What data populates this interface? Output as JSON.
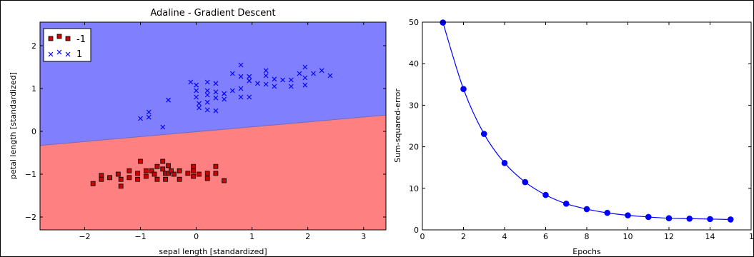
{
  "chart_data": [
    {
      "type": "scatter",
      "title": "Adaline - Gradient Descent",
      "xlabel": "sepal length [standardized]",
      "ylabel": "petal length [standardized]",
      "xlim": [
        -2.8,
        3.4
      ],
      "ylim": [
        -2.3,
        2.55
      ],
      "xticks": [
        -2,
        -1,
        0,
        1,
        2,
        3
      ],
      "yticks": [
        -2,
        -1,
        0,
        1,
        2
      ],
      "xtick_labels": [
        "−2",
        "−1",
        "0",
        "1",
        "2",
        "3"
      ],
      "ytick_labels": [
        "−2",
        "−1",
        "0",
        "1",
        "2"
      ],
      "legend_position": "top-left",
      "decision_boundary": {
        "x": [
          -2.8,
          3.4
        ],
        "y": [
          -0.33,
          0.38
        ]
      },
      "regions": {
        "upper_color": "#8080ff",
        "lower_color": "#ff8080"
      },
      "series": [
        {
          "name": "-1",
          "marker": "square",
          "color": "#cc0000",
          "points": [
            [
              -1.85,
              -1.22
            ],
            [
              -1.7,
              -1.03
            ],
            [
              -1.7,
              -1.12
            ],
            [
              -1.55,
              -1.08
            ],
            [
              -1.4,
              -1.0
            ],
            [
              -1.35,
              -1.12
            ],
            [
              -1.35,
              -1.28
            ],
            [
              -1.2,
              -0.92
            ],
            [
              -1.2,
              -1.08
            ],
            [
              -1.05,
              -0.98
            ],
            [
              -1.05,
              -1.12
            ],
            [
              -1.0,
              -0.7
            ],
            [
              -0.9,
              -0.92
            ],
            [
              -0.9,
              -1.05
            ],
            [
              -0.8,
              -0.92
            ],
            [
              -0.75,
              -1.0
            ],
            [
              -0.7,
              -0.82
            ],
            [
              -0.7,
              -1.12
            ],
            [
              -0.6,
              -0.7
            ],
            [
              -0.6,
              -0.88
            ],
            [
              -0.55,
              -0.98
            ],
            [
              -0.55,
              -1.12
            ],
            [
              -0.5,
              -0.8
            ],
            [
              -0.5,
              -0.98
            ],
            [
              -0.45,
              -0.92
            ],
            [
              -0.4,
              -1.0
            ],
            [
              -0.3,
              -0.92
            ],
            [
              -0.3,
              -1.12
            ],
            [
              -0.15,
              -0.98
            ],
            [
              -0.05,
              -0.82
            ],
            [
              -0.05,
              -0.92
            ],
            [
              -0.05,
              -1.05
            ],
            [
              0.05,
              -1.0
            ],
            [
              0.2,
              -0.98
            ],
            [
              0.2,
              -1.1
            ],
            [
              0.35,
              -0.82
            ],
            [
              0.35,
              -0.98
            ],
            [
              0.5,
              -1.15
            ]
          ]
        },
        {
          "name": "1",
          "marker": "x",
          "color": "#0000ff",
          "points": [
            [
              -1.0,
              0.3
            ],
            [
              -0.85,
              0.33
            ],
            [
              -0.85,
              0.45
            ],
            [
              -0.6,
              0.1
            ],
            [
              -0.5,
              0.73
            ],
            [
              -0.1,
              1.15
            ],
            [
              0.0,
              0.95
            ],
            [
              0.0,
              1.08
            ],
            [
              0.0,
              0.8
            ],
            [
              0.05,
              0.65
            ],
            [
              0.05,
              0.55
            ],
            [
              0.2,
              1.15
            ],
            [
              0.2,
              0.95
            ],
            [
              0.2,
              0.85
            ],
            [
              0.2,
              0.68
            ],
            [
              0.2,
              0.5
            ],
            [
              0.35,
              1.12
            ],
            [
              0.35,
              0.92
            ],
            [
              0.35,
              0.78
            ],
            [
              0.35,
              0.48
            ],
            [
              0.5,
              0.88
            ],
            [
              0.5,
              0.75
            ],
            [
              0.65,
              1.35
            ],
            [
              0.65,
              0.95
            ],
            [
              0.8,
              1.55
            ],
            [
              0.8,
              1.28
            ],
            [
              0.8,
              1.0
            ],
            [
              0.8,
              0.8
            ],
            [
              0.95,
              1.28
            ],
            [
              0.95,
              1.18
            ],
            [
              0.95,
              0.8
            ],
            [
              1.1,
              1.12
            ],
            [
              1.25,
              1.42
            ],
            [
              1.25,
              1.3
            ],
            [
              1.25,
              1.1
            ],
            [
              1.4,
              1.22
            ],
            [
              1.4,
              1.05
            ],
            [
              1.55,
              1.2
            ],
            [
              1.7,
              1.2
            ],
            [
              1.7,
              1.05
            ],
            [
              1.85,
              1.35
            ],
            [
              1.95,
              1.5
            ],
            [
              1.95,
              1.25
            ],
            [
              1.95,
              1.08
            ],
            [
              2.1,
              1.35
            ],
            [
              2.25,
              1.42
            ],
            [
              2.4,
              1.3
            ]
          ]
        }
      ]
    },
    {
      "type": "line",
      "title": "",
      "xlabel": "Epochs",
      "ylabel": "Sum-squared-error",
      "xlim": [
        0,
        16
      ],
      "ylim": [
        0,
        50
      ],
      "xticks": [
        0,
        2,
        4,
        6,
        8,
        10,
        12,
        14,
        16
      ],
      "yticks": [
        0,
        10,
        20,
        30,
        40,
        50
      ],
      "xtick_labels": [
        "0",
        "2",
        "4",
        "6",
        "8",
        "10",
        "12",
        "14",
        "16"
      ],
      "ytick_labels": [
        "0",
        "10",
        "20",
        "30",
        "40",
        "50"
      ],
      "line_color": "#0000ff",
      "marker": "circle",
      "x": [
        1,
        2,
        3,
        4,
        5,
        6,
        7,
        8,
        9,
        10,
        11,
        12,
        13,
        14,
        15
      ],
      "y": [
        49.9,
        33.9,
        23.1,
        16.1,
        11.5,
        8.4,
        6.3,
        5.0,
        4.1,
        3.5,
        3.1,
        2.8,
        2.7,
        2.6,
        2.5
      ]
    }
  ]
}
